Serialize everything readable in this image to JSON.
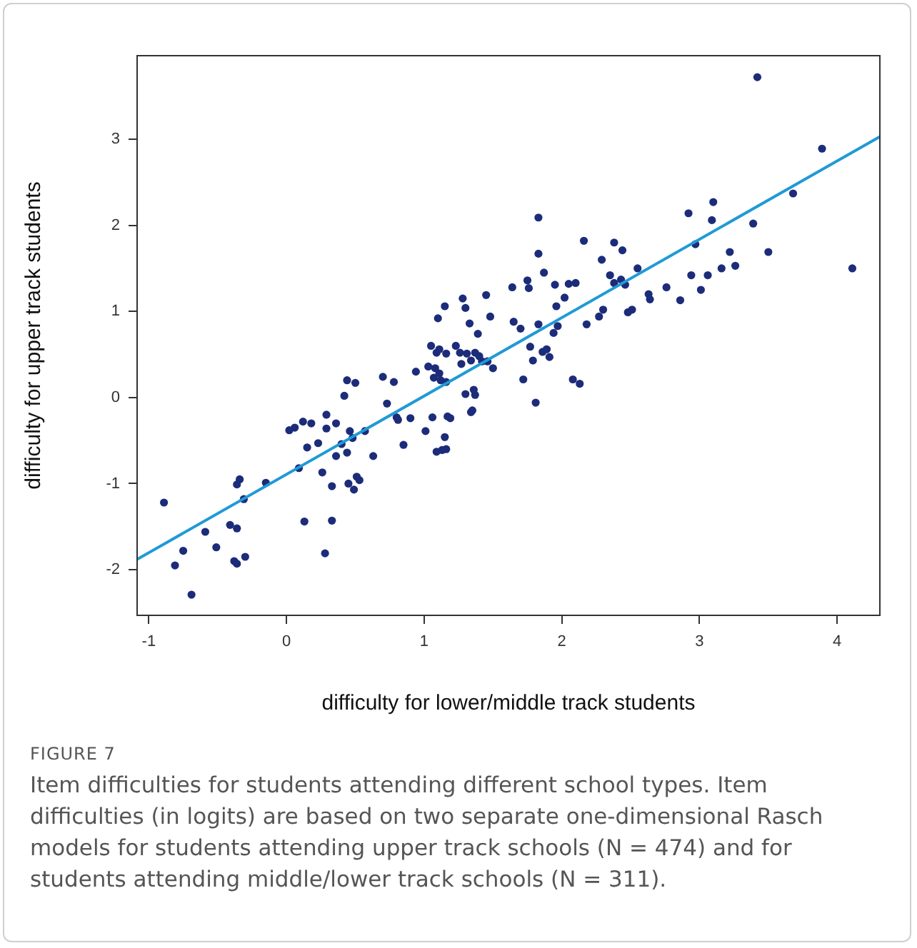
{
  "chart_data": {
    "type": "scatter",
    "xlabel": "difficulty for lower/middle track students",
    "ylabel": "difficulty for upper track students",
    "xlim": [
      -1.085,
      4.31
    ],
    "ylim": [
      -2.53,
      3.97
    ],
    "xticks": [
      -1,
      0,
      1,
      2,
      3,
      4
    ],
    "yticks": [
      -2,
      -1,
      0,
      1,
      2,
      3
    ],
    "grid": false,
    "annotations": [
      "FIGURE 7",
      "Item difficulties for students attending different school types. Item difficulties (in logits) are based on two separate one-dimensional Rasch models for students attending upper track schools (N = 474) and for students attending middle/lower track schools (N = 311)."
    ],
    "series": [
      {
        "type": "scatter",
        "marker": "circle",
        "color": "#1c2c7a",
        "x": [
          -0.89,
          -0.81,
          -0.75,
          -0.69,
          -0.59,
          -0.51,
          -0.41,
          -0.38,
          -0.36,
          -0.36,
          -0.36,
          -0.34,
          -0.31,
          -0.3,
          -0.15,
          0.02,
          0.06,
          0.09,
          0.12,
          0.13,
          0.15,
          0.18,
          0.23,
          0.26,
          0.28,
          0.29,
          0.29,
          0.33,
          0.33,
          0.36,
          0.36,
          0.4,
          0.42,
          0.44,
          0.44,
          0.45,
          0.46,
          0.48,
          0.49,
          0.5,
          0.51,
          0.53,
          0.57,
          0.63,
          0.7,
          0.73,
          0.78,
          0.8,
          0.81,
          0.85,
          0.9,
          0.94,
          1.01,
          1.03,
          1.05,
          1.06,
          1.07,
          1.08,
          1.09,
          1.09,
          1.1,
          1.11,
          1.11,
          1.12,
          1.13,
          1.15,
          1.16,
          1.15,
          1.16,
          1.16,
          1.17,
          1.19,
          1.23,
          1.26,
          1.27,
          1.28,
          1.3,
          1.3,
          1.31,
          1.33,
          1.34,
          1.34,
          1.35,
          1.36,
          1.37,
          1.37,
          1.39,
          1.4,
          1.42,
          1.45,
          1.46,
          1.48,
          1.5,
          1.64,
          1.65,
          1.7,
          1.72,
          1.75,
          1.76,
          1.77,
          1.79,
          1.81,
          1.83,
          1.83,
          1.83,
          1.86,
          1.87,
          1.89,
          1.91,
          1.94,
          1.95,
          1.96,
          1.97,
          2.02,
          2.05,
          2.08,
          2.1,
          2.13,
          2.16,
          2.18,
          2.27,
          2.29,
          2.3,
          2.35,
          2.38,
          2.38,
          2.43,
          2.44,
          2.46,
          2.48,
          2.51,
          2.55,
          2.63,
          2.64,
          2.76,
          2.86,
          2.92,
          2.94,
          2.97,
          3.01,
          3.06,
          3.09,
          3.1,
          3.16,
          3.22,
          3.26,
          3.39,
          3.42,
          3.5,
          3.68,
          3.89,
          4.11
        ],
        "values": [
          -1.22,
          -1.95,
          -1.78,
          -2.29,
          -1.56,
          -1.74,
          -1.48,
          -1.9,
          -1.52,
          -1.93,
          -1.01,
          -0.95,
          -1.18,
          -1.85,
          -0.99,
          -0.38,
          -0.35,
          -0.82,
          -0.28,
          -1.44,
          -0.58,
          -0.3,
          -0.53,
          -0.87,
          -1.81,
          -0.2,
          -0.36,
          -1.03,
          -1.43,
          -0.3,
          -0.68,
          -0.54,
          0.02,
          0.2,
          -0.64,
          -1.0,
          -0.39,
          -0.47,
          -1.07,
          0.17,
          -0.92,
          -0.96,
          -0.39,
          -0.68,
          0.24,
          -0.07,
          0.18,
          -0.23,
          -0.26,
          -0.55,
          -0.24,
          0.3,
          -0.39,
          0.36,
          0.6,
          -0.23,
          0.23,
          0.34,
          0.52,
          -0.63,
          0.92,
          0.56,
          0.28,
          0.2,
          -0.61,
          -0.46,
          -0.6,
          1.06,
          0.51,
          0.18,
          -0.22,
          -0.24,
          0.6,
          0.52,
          0.39,
          1.15,
          0.04,
          1.04,
          0.51,
          0.86,
          0.43,
          -0.17,
          -0.15,
          0.09,
          0.03,
          0.52,
          0.74,
          0.48,
          0.42,
          1.19,
          0.42,
          0.94,
          0.34,
          1.28,
          0.88,
          0.8,
          0.21,
          1.36,
          1.27,
          0.59,
          0.43,
          -0.06,
          1.67,
          2.09,
          0.85,
          0.53,
          1.45,
          0.56,
          0.47,
          0.75,
          1.31,
          1.06,
          0.83,
          1.16,
          1.32,
          0.21,
          1.33,
          0.16,
          1.82,
          0.85,
          0.94,
          1.6,
          1.02,
          1.42,
          1.8,
          1.33,
          1.37,
          1.71,
          1.31,
          0.99,
          1.02,
          1.5,
          1.2,
          1.14,
          1.28,
          1.13,
          2.14,
          1.42,
          1.78,
          1.25,
          1.42,
          2.06,
          2.27,
          1.5,
          1.69,
          1.53,
          2.02,
          3.72,
          1.69,
          2.37,
          2.89,
          1.5
        ]
      },
      {
        "type": "line",
        "marker": "none",
        "color": "#1f9ad6",
        "x": [
          -1.085,
          4.31
        ],
        "values": [
          -1.88,
          3.03
        ]
      }
    ]
  }
}
